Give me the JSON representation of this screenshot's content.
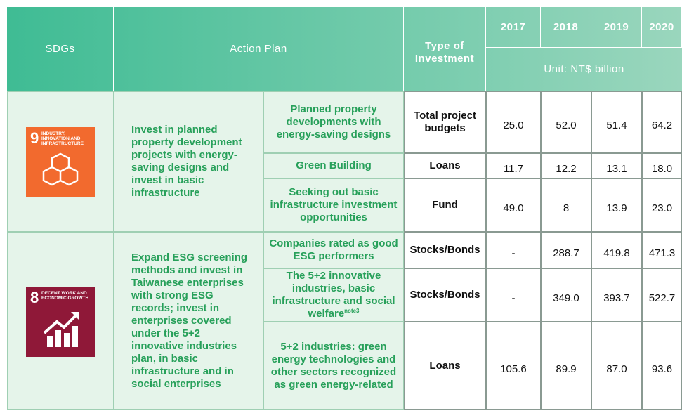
{
  "header": {
    "sdgs": "SDGs",
    "action_plan": "Action Plan",
    "type": "Type of Investment",
    "years": [
      "2017",
      "2018",
      "2019",
      "2020"
    ],
    "unit": "Unit: NT$ billion"
  },
  "groups": [
    {
      "sdg": {
        "number": "9",
        "label": "INDUSTRY, INNOVATION AND INFRASTRUCTURE"
      },
      "plan": "Invest in planned property development projects with energy-saving designs and invest in basic infrastructure",
      "rows": [
        {
          "item": "Planned property developments with energy-saving designs",
          "type": "Total project budgets",
          "values": [
            "25.0",
            "52.0",
            "51.4",
            "64.2"
          ]
        },
        {
          "item": "Green Building",
          "type": "Loans",
          "values": [
            "11.7",
            "12.2",
            "13.1",
            "18.0"
          ]
        },
        {
          "item": "Seeking out basic infrastructure investment opportunities",
          "type": "Fund",
          "values": [
            "49.0",
            "8",
            "13.9",
            "23.0"
          ]
        }
      ]
    },
    {
      "sdg": {
        "number": "8",
        "label": "DECENT WORK AND ECONOMIC GROWTH"
      },
      "plan": "Expand ESG screening methods and invest in Taiwanese enterprises with strong ESG records; invest in enterprises covered under the 5+2 innovative industries plan, in basic infrastructure and in social enterprises",
      "rows": [
        {
          "item": "Companies rated as good ESG performers",
          "type": "Stocks/Bonds",
          "values": [
            "-",
            "288.7",
            "419.8",
            "471.3"
          ]
        },
        {
          "item": "The 5+2 innovative industries, basic infrastructure and social welfare",
          "note": "note3",
          "type": "Stocks/Bonds",
          "values": [
            "-",
            "349.0",
            "393.7",
            "522.7"
          ]
        },
        {
          "item": "5+2 industries: green energy technologies and other sectors recognized as green energy-related",
          "type": "Loans",
          "values": [
            "105.6",
            "89.9",
            "87.0",
            "93.6"
          ]
        }
      ]
    }
  ]
}
